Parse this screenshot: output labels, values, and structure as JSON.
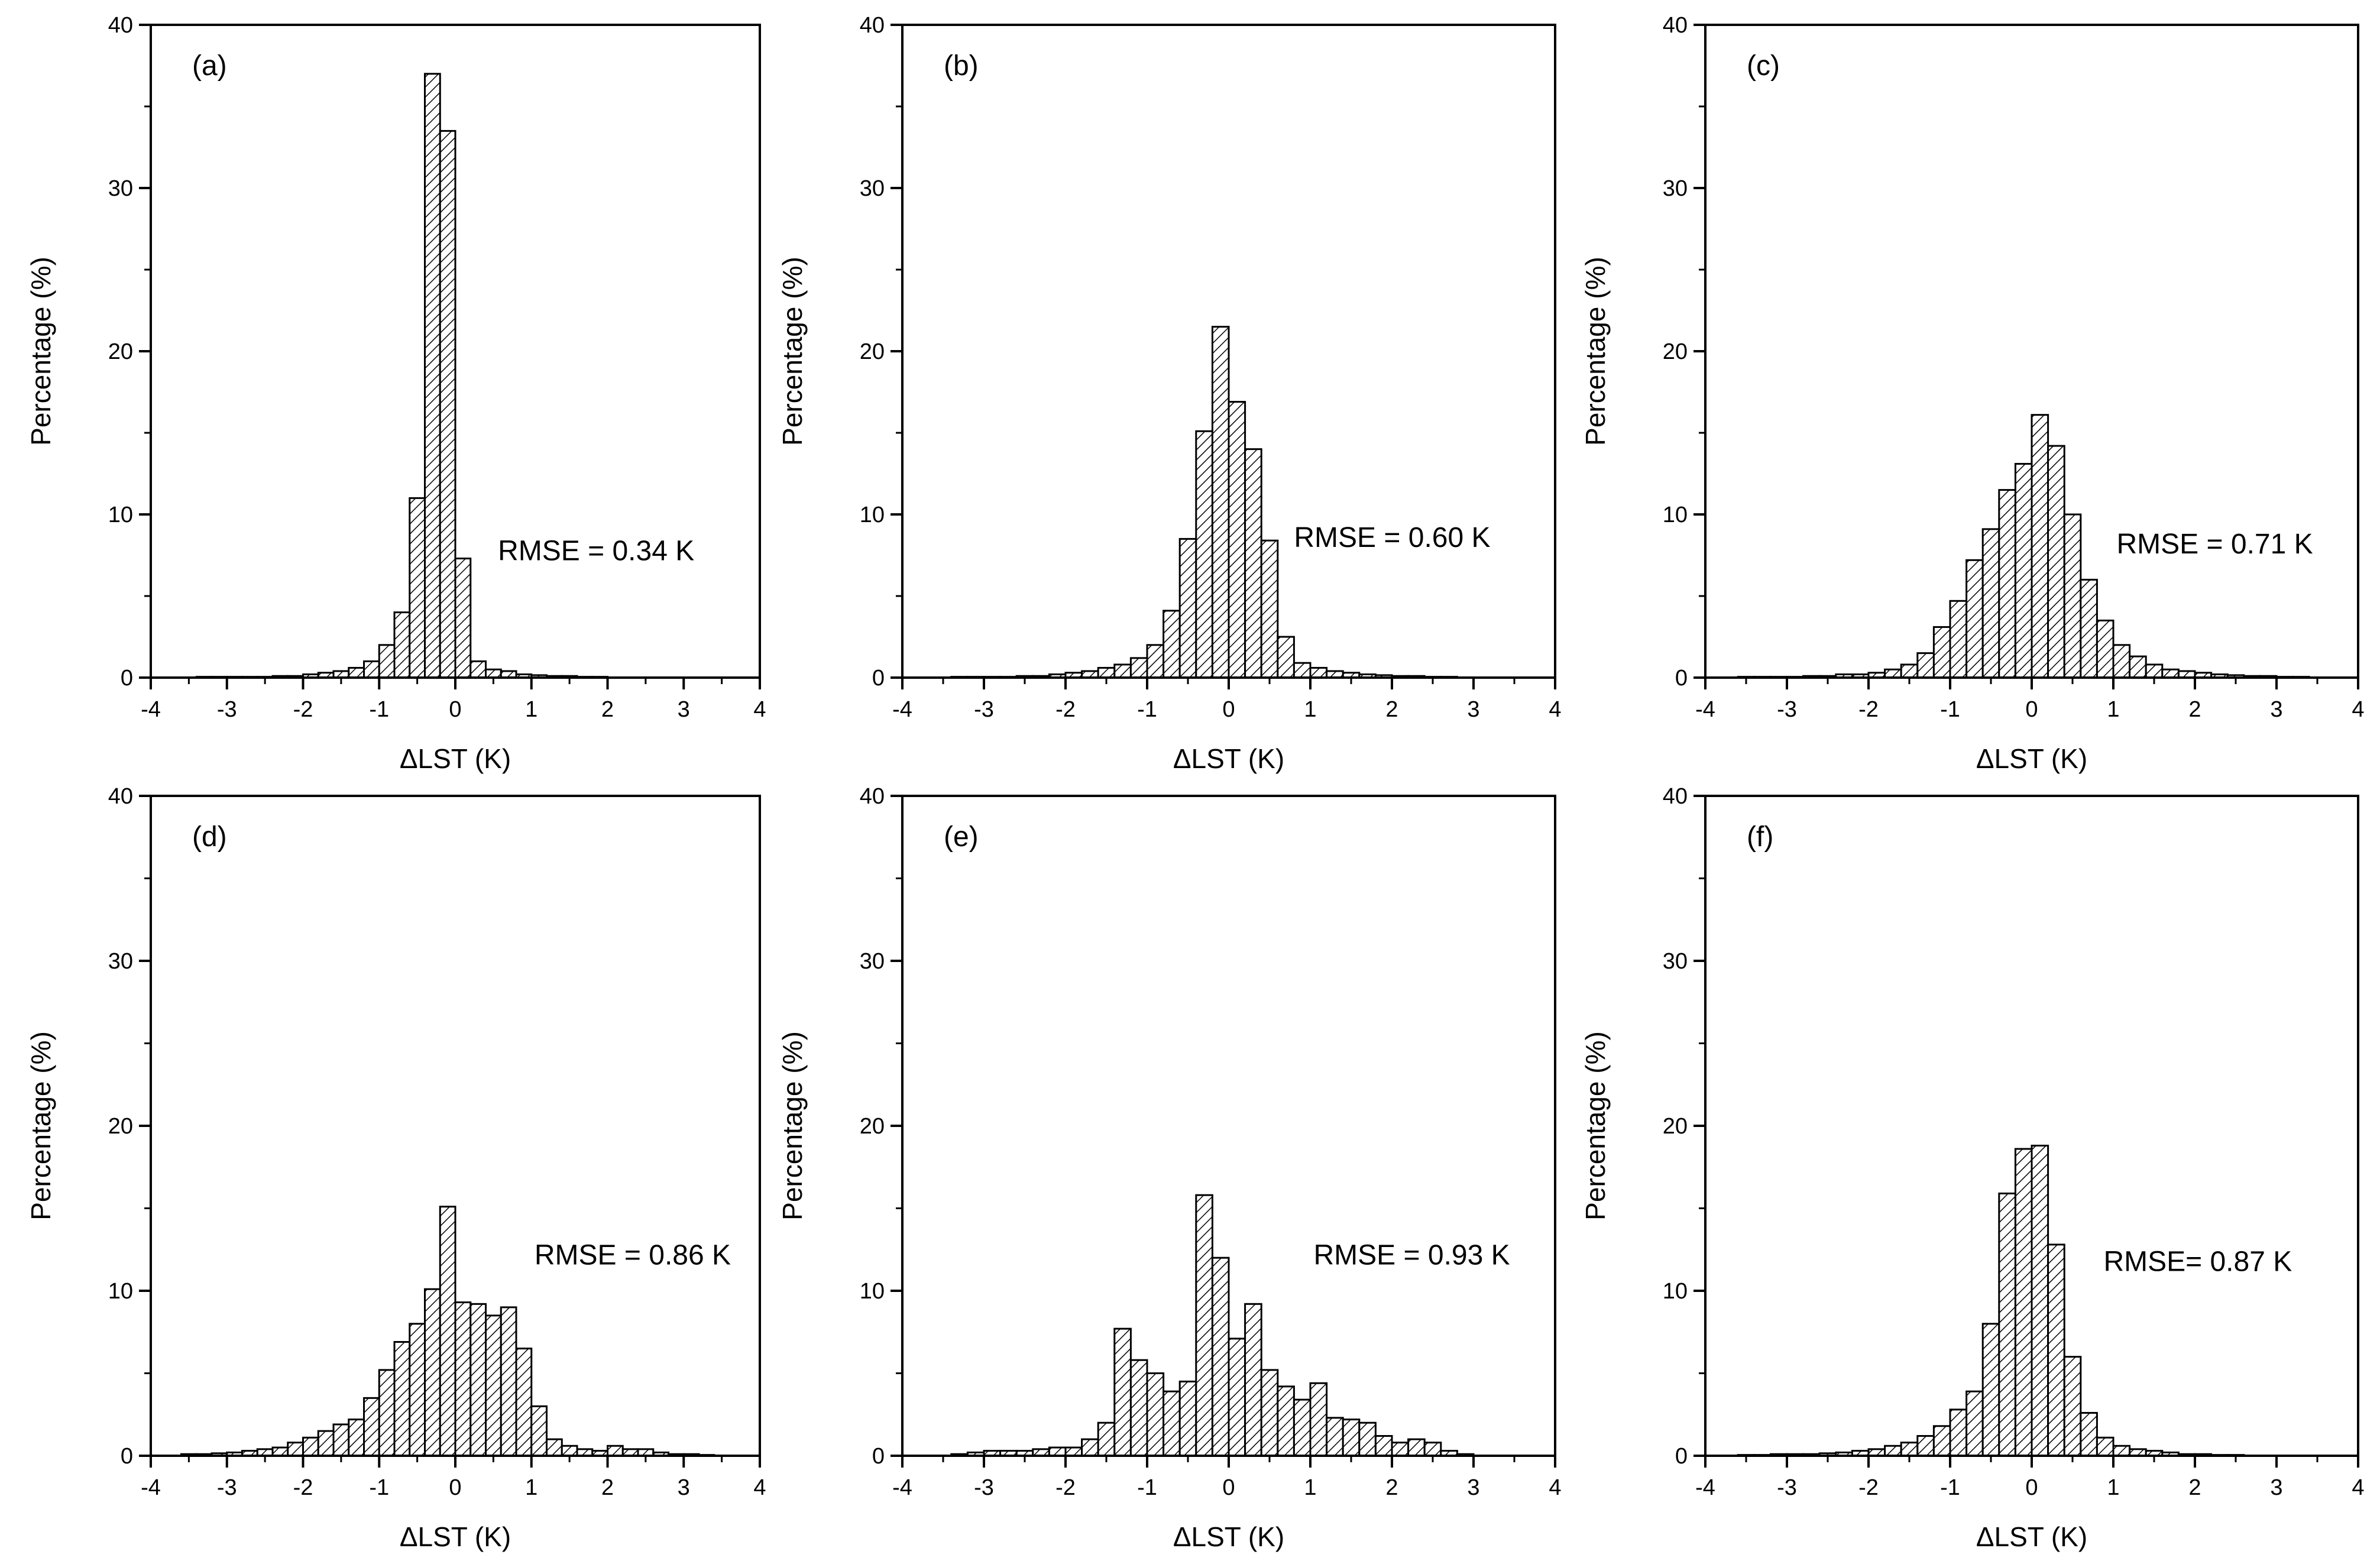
{
  "figure": {
    "colors": {
      "bar_stroke": "#000000",
      "bar_fill": "#ffffff",
      "hatch": "#000000",
      "axis": "#000000"
    }
  },
  "chart_data": [
    {
      "type": "bar",
      "panel": "(a)",
      "rmse_text": "RMSE = 0.34 K",
      "xlabel": "ΔLST (K)",
      "ylabel": "Percentage (%)",
      "xlim": [
        -4,
        4
      ],
      "ylim": [
        0,
        40
      ],
      "xticks": [
        -4,
        -3,
        -2,
        -1,
        0,
        1,
        2,
        3,
        4
      ],
      "yticks": [
        0,
        10,
        20,
        30,
        40
      ],
      "bin_width": 0.2,
      "bin_centers": [
        -3.3,
        -3.1,
        -2.9,
        -2.7,
        -2.5,
        -2.3,
        -2.1,
        -1.9,
        -1.7,
        -1.5,
        -1.3,
        -1.1,
        -0.9,
        -0.7,
        -0.5,
        -0.3,
        -0.1,
        0.1,
        0.3,
        0.5,
        0.7,
        0.9,
        1.1,
        1.3,
        1.5,
        1.7,
        1.9
      ],
      "values": [
        0.05,
        0.05,
        0.05,
        0.05,
        0.05,
        0.1,
        0.1,
        0.2,
        0.3,
        0.4,
        0.6,
        1.0,
        2.0,
        4.0,
        11.0,
        37.0,
        33.5,
        7.3,
        1.0,
        0.5,
        0.4,
        0.2,
        0.15,
        0.1,
        0.1,
        0.05,
        0.05
      ]
    },
    {
      "type": "bar",
      "panel": "(b)",
      "rmse_text": "RMSE = 0.60 K",
      "xlabel": "ΔLST (K)",
      "ylabel": "Percentage (%)",
      "xlim": [
        -4,
        4
      ],
      "ylim": [
        0,
        40
      ],
      "xticks": [
        -4,
        -3,
        -2,
        -1,
        0,
        1,
        2,
        3,
        4
      ],
      "yticks": [
        0,
        10,
        20,
        30,
        40
      ],
      "bin_width": 0.2,
      "bin_centers": [
        -3.3,
        -3.1,
        -2.9,
        -2.7,
        -2.5,
        -2.3,
        -2.1,
        -1.9,
        -1.7,
        -1.5,
        -1.3,
        -1.1,
        -0.9,
        -0.7,
        -0.5,
        -0.3,
        -0.1,
        0.1,
        0.3,
        0.5,
        0.7,
        0.9,
        1.1,
        1.3,
        1.5,
        1.7,
        1.9,
        2.1,
        2.3,
        2.5,
        2.7
      ],
      "values": [
        0.05,
        0.05,
        0.05,
        0.05,
        0.1,
        0.1,
        0.2,
        0.3,
        0.4,
        0.6,
        0.8,
        1.2,
        2.0,
        4.1,
        8.5,
        15.1,
        21.5,
        16.9,
        14.0,
        8.4,
        2.5,
        0.9,
        0.6,
        0.4,
        0.3,
        0.2,
        0.15,
        0.1,
        0.1,
        0.05,
        0.05
      ]
    },
    {
      "type": "bar",
      "panel": "(c)",
      "rmse_text": "RMSE = 0.71 K",
      "xlabel": "ΔLST (K)",
      "ylabel": "Percentage (%)",
      "xlim": [
        -4,
        4
      ],
      "ylim": [
        0,
        40
      ],
      "xticks": [
        -4,
        -3,
        -2,
        -1,
        0,
        1,
        2,
        3,
        4
      ],
      "yticks": [
        0,
        10,
        20,
        30,
        40
      ],
      "bin_width": 0.2,
      "bin_centers": [
        -3.5,
        -3.3,
        -3.1,
        -2.9,
        -2.7,
        -2.5,
        -2.3,
        -2.1,
        -1.9,
        -1.7,
        -1.5,
        -1.3,
        -1.1,
        -0.9,
        -0.7,
        -0.5,
        -0.3,
        -0.1,
        0.1,
        0.3,
        0.5,
        0.7,
        0.9,
        1.1,
        1.3,
        1.5,
        1.7,
        1.9,
        2.1,
        2.3,
        2.5,
        2.7,
        2.9,
        3.1,
        3.3
      ],
      "values": [
        0.05,
        0.05,
        0.05,
        0.05,
        0.1,
        0.1,
        0.2,
        0.2,
        0.3,
        0.5,
        0.8,
        1.5,
        3.1,
        4.7,
        7.2,
        9.1,
        11.5,
        13.1,
        16.1,
        14.2,
        10.0,
        6.0,
        3.5,
        2.0,
        1.3,
        0.8,
        0.5,
        0.4,
        0.3,
        0.2,
        0.15,
        0.1,
        0.1,
        0.05,
        0.05
      ]
    },
    {
      "type": "bar",
      "panel": "(d)",
      "rmse_text": "RMSE = 0.86 K",
      "xlabel": "ΔLST (K)",
      "ylabel": "Percentage (%)",
      "xlim": [
        -4,
        4
      ],
      "ylim": [
        0,
        40
      ],
      "xticks": [
        -4,
        -3,
        -2,
        -1,
        0,
        1,
        2,
        3,
        4
      ],
      "yticks": [
        0,
        10,
        20,
        30,
        40
      ],
      "bin_width": 0.2,
      "bin_centers": [
        -3.5,
        -3.3,
        -3.1,
        -2.9,
        -2.7,
        -2.5,
        -2.3,
        -2.1,
        -1.9,
        -1.7,
        -1.5,
        -1.3,
        -1.1,
        -0.9,
        -0.7,
        -0.5,
        -0.3,
        -0.1,
        0.1,
        0.3,
        0.5,
        0.7,
        0.9,
        1.1,
        1.3,
        1.5,
        1.7,
        1.9,
        2.1,
        2.3,
        2.5,
        2.7,
        2.9,
        3.1,
        3.3
      ],
      "values": [
        0.1,
        0.1,
        0.15,
        0.2,
        0.3,
        0.4,
        0.5,
        0.8,
        1.1,
        1.5,
        1.9,
        2.2,
        3.5,
        5.2,
        6.9,
        8.0,
        10.1,
        15.1,
        9.3,
        9.2,
        8.5,
        9.0,
        6.5,
        3.0,
        1.0,
        0.6,
        0.4,
        0.3,
        0.6,
        0.4,
        0.4,
        0.2,
        0.1,
        0.1,
        0.05
      ]
    },
    {
      "type": "bar",
      "panel": "(e)",
      "rmse_text": "RMSE = 0.93 K",
      "xlabel": "ΔLST (K)",
      "ylabel": "Percentage (%)",
      "xlim": [
        -4,
        4
      ],
      "ylim": [
        0,
        40
      ],
      "xticks": [
        -4,
        -3,
        -2,
        -1,
        0,
        1,
        2,
        3,
        4
      ],
      "yticks": [
        0,
        10,
        20,
        30,
        40
      ],
      "bin_width": 0.2,
      "bin_centers": [
        -3.3,
        -3.1,
        -2.9,
        -2.7,
        -2.5,
        -2.3,
        -2.1,
        -1.9,
        -1.7,
        -1.5,
        -1.3,
        -1.1,
        -0.9,
        -0.7,
        -0.5,
        -0.3,
        -0.1,
        0.1,
        0.3,
        0.5,
        0.7,
        0.9,
        1.1,
        1.3,
        1.5,
        1.7,
        1.9,
        2.1,
        2.3,
        2.5,
        2.7,
        2.9
      ],
      "values": [
        0.1,
        0.2,
        0.3,
        0.3,
        0.3,
        0.4,
        0.5,
        0.5,
        1.0,
        2.0,
        7.7,
        5.8,
        5.0,
        3.9,
        4.5,
        15.8,
        12.0,
        7.1,
        9.2,
        5.2,
        4.2,
        3.4,
        4.4,
        2.3,
        2.2,
        2.0,
        1.2,
        0.8,
        1.0,
        0.8,
        0.3,
        0.1
      ]
    },
    {
      "type": "bar",
      "panel": "(f)",
      "rmse_text": "RMSE= 0.87 K",
      "xlabel": "ΔLST (K)",
      "ylabel": "Percentage (%)",
      "xlim": [
        -4,
        4
      ],
      "ylim": [
        0,
        40
      ],
      "xticks": [
        -4,
        -3,
        -2,
        -1,
        0,
        1,
        2,
        3,
        4
      ],
      "yticks": [
        0,
        10,
        20,
        30,
        40
      ],
      "bin_width": 0.2,
      "bin_centers": [
        -3.5,
        -3.3,
        -3.1,
        -2.9,
        -2.7,
        -2.5,
        -2.3,
        -2.1,
        -1.9,
        -1.7,
        -1.5,
        -1.3,
        -1.1,
        -0.9,
        -0.7,
        -0.5,
        -0.3,
        -0.1,
        0.1,
        0.3,
        0.5,
        0.7,
        0.9,
        1.1,
        1.3,
        1.5,
        1.7,
        1.9,
        2.1,
        2.3,
        2.5
      ],
      "values": [
        0.05,
        0.05,
        0.1,
        0.1,
        0.1,
        0.15,
        0.2,
        0.3,
        0.4,
        0.6,
        0.8,
        1.2,
        1.8,
        2.8,
        3.9,
        8.0,
        15.9,
        18.6,
        18.8,
        12.8,
        6.0,
        2.6,
        1.1,
        0.6,
        0.4,
        0.3,
        0.2,
        0.1,
        0.1,
        0.05,
        0.05
      ]
    }
  ]
}
